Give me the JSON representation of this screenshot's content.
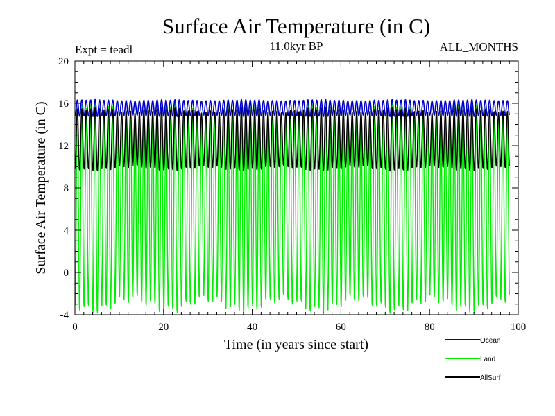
{
  "chart_data": {
    "type": "line",
    "title": "Surface Air Temperature (in C)",
    "subtitle": "11.0kyr BP",
    "expt_label": "Expt = teadl",
    "period_label": "ALL_MONTHS",
    "xlabel": "Time (in years since start)",
    "ylabel": "Surface Air Temperature (in C)",
    "xlim": [
      0,
      100
    ],
    "ylim": [
      -4,
      20
    ],
    "x_ticks": [
      "0",
      "20",
      "40",
      "60",
      "80",
      "100"
    ],
    "y_ticks": [
      "-4",
      "0",
      "4",
      "8",
      "12",
      "16",
      "20"
    ],
    "x_tick_values": [
      0,
      20,
      40,
      60,
      80,
      100
    ],
    "y_tick_values": [
      -4,
      0,
      4,
      8,
      12,
      16,
      20
    ],
    "grid": false,
    "legend_position": "bottom-right",
    "samples_per_year": 12,
    "series": [
      {
        "name": "Ocean",
        "color": "#0000cc",
        "x_range": [
          0,
          98
        ],
        "min": 14.8,
        "max": 16.3,
        "cycle_period_years": 1
      },
      {
        "name": "Land",
        "color": "#00ee00",
        "x_range": [
          0,
          98
        ],
        "min": -3.2,
        "max": 15.6,
        "cycle_period_years": 1
      },
      {
        "name": "AllSurf",
        "color": "#000000",
        "x_range": [
          0,
          98
        ],
        "min": 9.8,
        "max": 15.4,
        "cycle_period_years": 1
      }
    ]
  }
}
